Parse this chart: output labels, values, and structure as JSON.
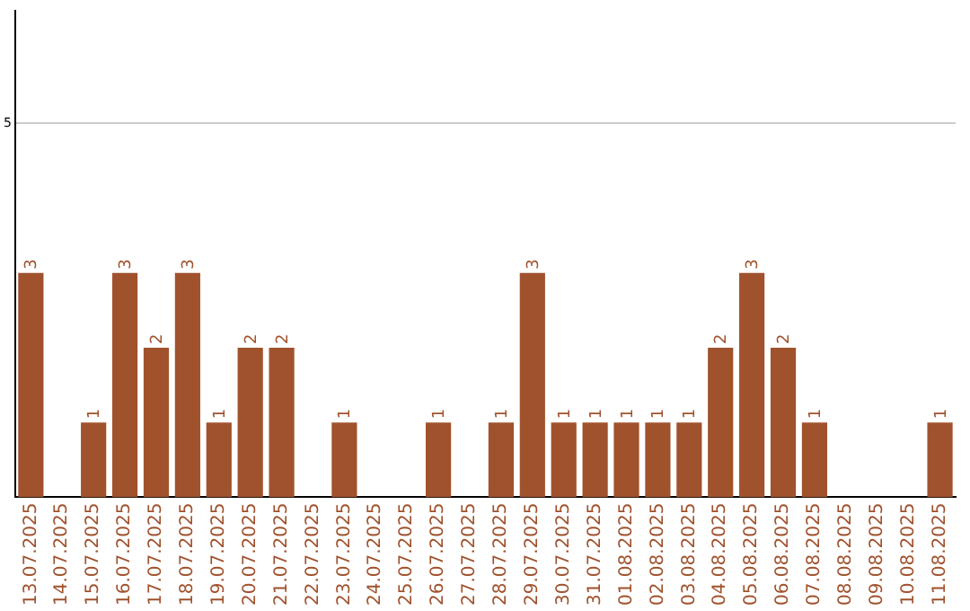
{
  "chart_data": {
    "type": "bar",
    "categories": [
      "13.07.2025",
      "14.07.2025",
      "15.07.2025",
      "16.07.2025",
      "17.07.2025",
      "18.07.2025",
      "19.07.2025",
      "20.07.2025",
      "21.07.2025",
      "22.07.2025",
      "23.07.2025",
      "24.07.2025",
      "25.07.2025",
      "26.07.2025",
      "27.07.2025",
      "28.07.2025",
      "29.07.2025",
      "30.07.2025",
      "31.07.2025",
      "01.08.2025",
      "02.08.2025",
      "03.08.2025",
      "04.08.2025",
      "05.08.2025",
      "06.08.2025",
      "07.08.2025",
      "08.08.2025",
      "09.08.2025",
      "10.08.2025",
      "11.08.2025"
    ],
    "values": [
      3,
      0,
      1,
      3,
      2,
      3,
      1,
      2,
      2,
      0,
      1,
      0,
      0,
      1,
      0,
      1,
      3,
      1,
      1,
      1,
      1,
      1,
      2,
      3,
      2,
      1,
      0,
      0,
      0,
      1
    ],
    "value_labels": [
      "3",
      null,
      "1",
      "3",
      "2",
      "3",
      "1",
      "2",
      "2",
      null,
      "1",
      null,
      null,
      "1",
      null,
      "1",
      "3",
      "1",
      "1",
      "1",
      "1",
      "1",
      "2",
      "3",
      "2",
      "1",
      null,
      null,
      null,
      "1"
    ],
    "color": "#a0522d",
    "ylim": [
      0,
      6.5
    ],
    "yticks": [
      5
    ],
    "grid": "y",
    "legend": false
  }
}
